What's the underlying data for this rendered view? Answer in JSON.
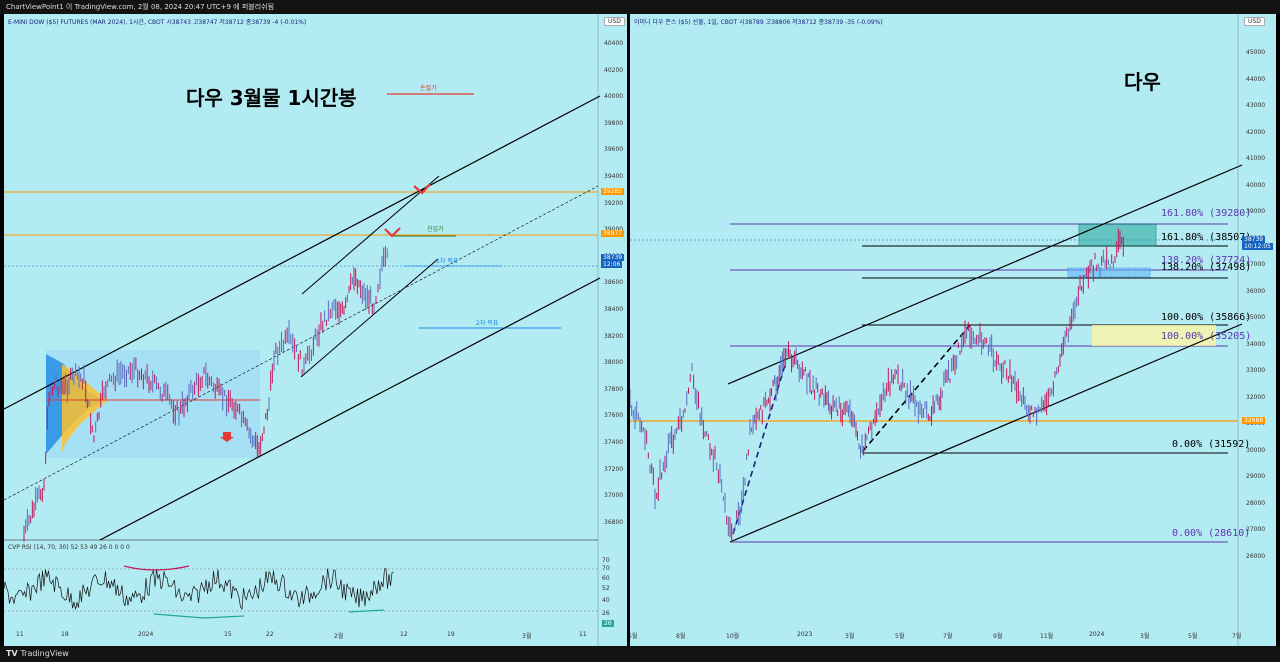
{
  "topbar": {
    "text": "ChartViewPoint1 이 TradingView.com, 2월 08, 2024 20:47 UTC+9 에 퍼블리쉬됨"
  },
  "bottombar": {
    "brand": "TradingView"
  },
  "left": {
    "legend": "E-MINI DOW ($5) FUTURES (MAR 2024), 1시간, CBOT  시38743  고38747  저38712  종38739  -4 (-0.01%)",
    "usd": "USD",
    "title": "다우 3월물 1시간봉",
    "notes": {
      "stoploss": "손절가",
      "entry": "진입가",
      "target1": "1차 목표",
      "target2": "2차 목표"
    },
    "price_axis": [
      "40400",
      "40200",
      "40000",
      "39800",
      "39600",
      "39400",
      "39200",
      "39000",
      "38800",
      "38600",
      "38400",
      "38200",
      "38000",
      "37800",
      "37600",
      "37400",
      "37200",
      "37000",
      "36800"
    ],
    "tags": {
      "orange1": "39285",
      "orange2": "38977",
      "current": "38739",
      "countdown": "12:06"
    },
    "rsi": {
      "legend": "CVP RSI (14, 70, 30)  52  53  49  26  0  0  0  0",
      "axis": [
        "70",
        "70",
        "60",
        "52",
        "40",
        "26",
        "26"
      ]
    },
    "time_axis": [
      "11",
      "18",
      "2024",
      "15",
      "22",
      "2월",
      "12",
      "19",
      "3월",
      "11"
    ],
    "colors": {
      "bg": "#b2ebf2",
      "orange": "#ff9800",
      "red": "#e53935",
      "blue": "#1e88e5",
      "green": "#2e7d32"
    }
  },
  "right": {
    "legend": "이미니 다우 존스 ($5) 선물, 1일, CBOT  시38789  고38806  저38712  종38739  -35 (-0.09%)",
    "usd": "USD",
    "title": "다우",
    "fib": [
      "161.80% (39280)",
      "161.80% (38507)",
      "138.20% (37724)",
      "138.20% (37498)",
      "100.00% (35866)",
      "100.00% (35205)",
      "0.00% (31592)",
      "0.00% (28610)"
    ],
    "price_axis": [
      "45000",
      "44000",
      "43000",
      "42000",
      "41000",
      "40000",
      "39000",
      "38000",
      "37000",
      "36000",
      "35000",
      "34000",
      "33000",
      "32000",
      "31000",
      "30000",
      "29000",
      "28000",
      "27000",
      "26000"
    ],
    "tags": {
      "current": "38739",
      "countdown": "10:12:05",
      "orange": "32668"
    },
    "time_axis": [
      "5월",
      "8월",
      "10월",
      "2023",
      "3월",
      "5월",
      "7월",
      "9월",
      "11월",
      "2024",
      "3월",
      "5월",
      "7월"
    ]
  }
}
